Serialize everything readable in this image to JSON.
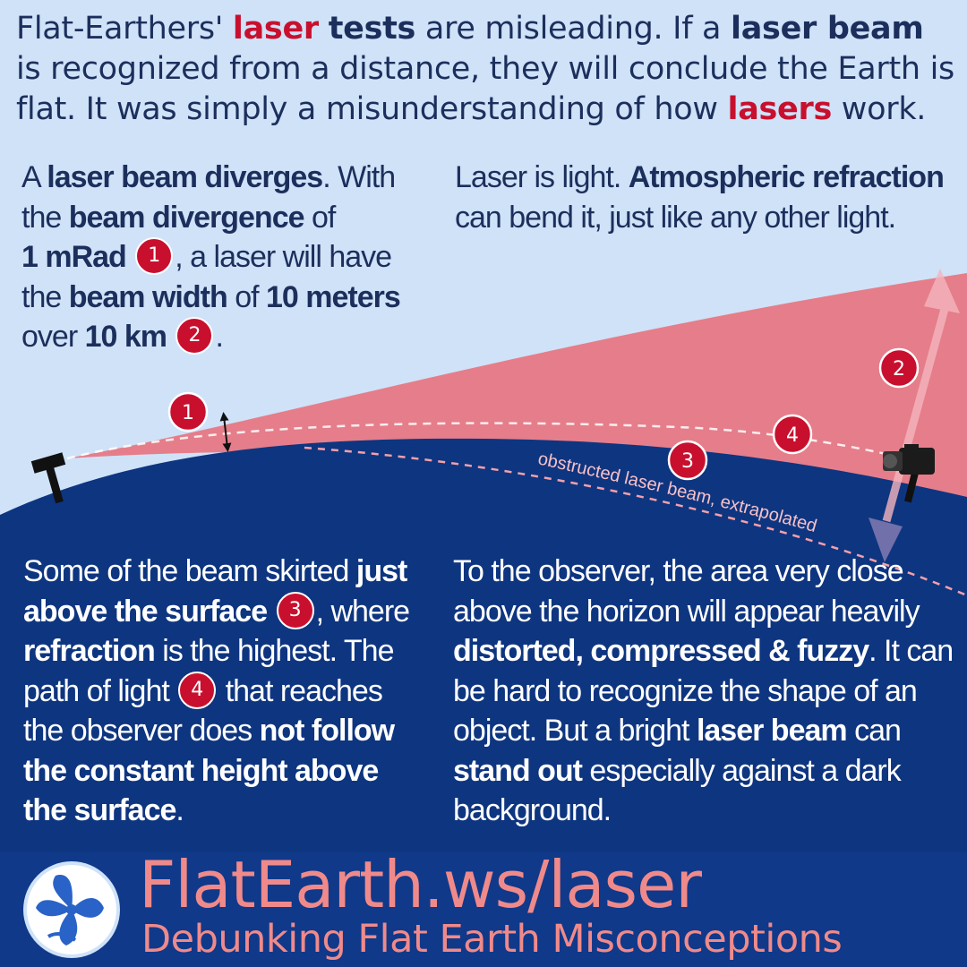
{
  "headline": {
    "p1": "Flat-Earthers' ",
    "w_laser": "laser",
    "w_tests": "tests",
    "p2": " are misleading. If a ",
    "w_laser_beam": "laser beam",
    "p3": " is recognized from a distance, they will conclude the Earth is flat. It was simply a misunderstanding of how ",
    "w_lasers": "lasers",
    "p4": " work."
  },
  "block_divergence": {
    "t1": "A ",
    "b1": "laser beam diverges",
    "t2": ". With the ",
    "b2": "beam divergence",
    "t3": " of ",
    "b3": "1 mRad",
    "badge": "1",
    "t4": ", a laser will have the ",
    "b4": "beam width",
    "t5": " of ",
    "b5": "10 meters",
    "t6": " over ",
    "b6": "10 km",
    "badge2": "2",
    "t7": "."
  },
  "block_refraction": {
    "t1": "Laser is light. ",
    "b1": "Atmospheric refraction",
    "t2": " can bend it, just like any other light."
  },
  "block_surface": {
    "t1": "Some of the beam skirted ",
    "b1": "just above the surface",
    "badge3": "3",
    "t2": ", where ",
    "b2": "refraction",
    "t3": " is the highest. The path of light ",
    "badge4": "4",
    "t4": " that reaches the observer does ",
    "b3": "not follow the constant height above the surface",
    "t5": "."
  },
  "block_observer": {
    "t1": "To the observer, the area very close above the horizon will appear heavily ",
    "b1": "distorted, compressed & fuzzy",
    "t2": ". It can be hard to recognize the shape of an object. But a bright ",
    "b2": "laser beam",
    "t3": " can ",
    "b3": "stand out",
    "t4": " especially against a dark background."
  },
  "diagram": {
    "marker_1": "1",
    "marker_2": "2",
    "marker_3": "3",
    "marker_4": "4",
    "extrapolated_label": "obstructed laser beam, extrapolated"
  },
  "footer": {
    "brand": "FlatEarth.ws/laser",
    "tagline": "Debunking Flat Earth Misconceptions"
  },
  "colors": {
    "sky": "#cfe2f8",
    "earth": "#0e3580",
    "beam": "#e67884",
    "accent_red": "#c8102e",
    "footer_bg": "#10398a",
    "footer_text": "#f08a8a"
  },
  "icons": [
    "laser-emitter-icon",
    "camera-icon",
    "globe-logo-icon"
  ]
}
